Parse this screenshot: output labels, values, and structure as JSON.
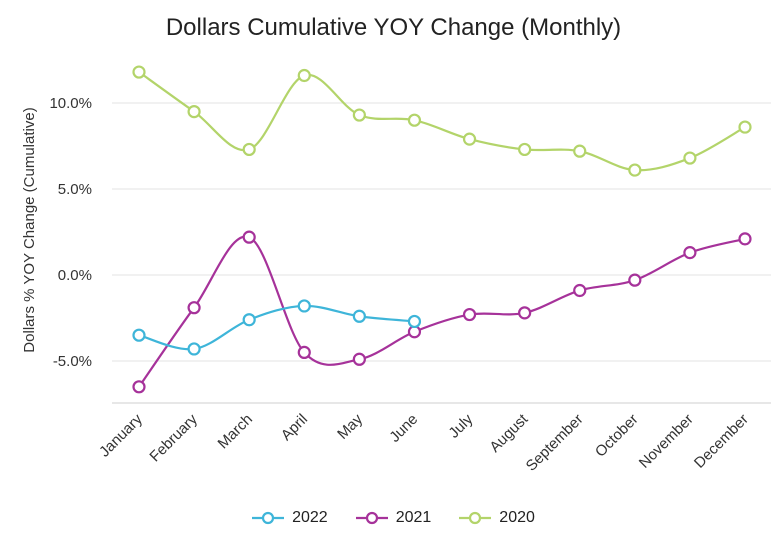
{
  "chart_data": {
    "type": "line",
    "title": "Dollars Cumulative YOY Change (Monthly)",
    "ylabel": "Dollars % YOY Change (Cumulative)",
    "xlabel": "",
    "categories": [
      "January",
      "February",
      "March",
      "April",
      "May",
      "June",
      "July",
      "August",
      "September",
      "October",
      "November",
      "December"
    ],
    "y_ticks": [
      "10.0%",
      "5.0%",
      "0.0%",
      "-5.0%"
    ],
    "y_tick_values": [
      10,
      5,
      0,
      -5
    ],
    "ylim": [
      -7.5,
      12.5
    ],
    "grid": true,
    "legend_position": "bottom",
    "series": [
      {
        "name": "2022",
        "color": "#3eb5d9",
        "values": [
          -3.5,
          -4.3,
          -2.6,
          -1.8,
          -2.4,
          -2.7,
          null,
          null,
          null,
          null,
          null,
          null
        ]
      },
      {
        "name": "2021",
        "color": "#a6329a",
        "values": [
          -6.5,
          -1.9,
          2.2,
          -4.5,
          -4.9,
          -3.3,
          -2.3,
          -2.2,
          -0.9,
          -0.3,
          1.3,
          2.1
        ]
      },
      {
        "name": "2020",
        "color": "#b3d46a",
        "values": [
          11.8,
          9.5,
          7.3,
          11.6,
          9.3,
          9.0,
          7.9,
          7.3,
          7.2,
          6.1,
          6.8,
          8.6
        ]
      }
    ]
  }
}
